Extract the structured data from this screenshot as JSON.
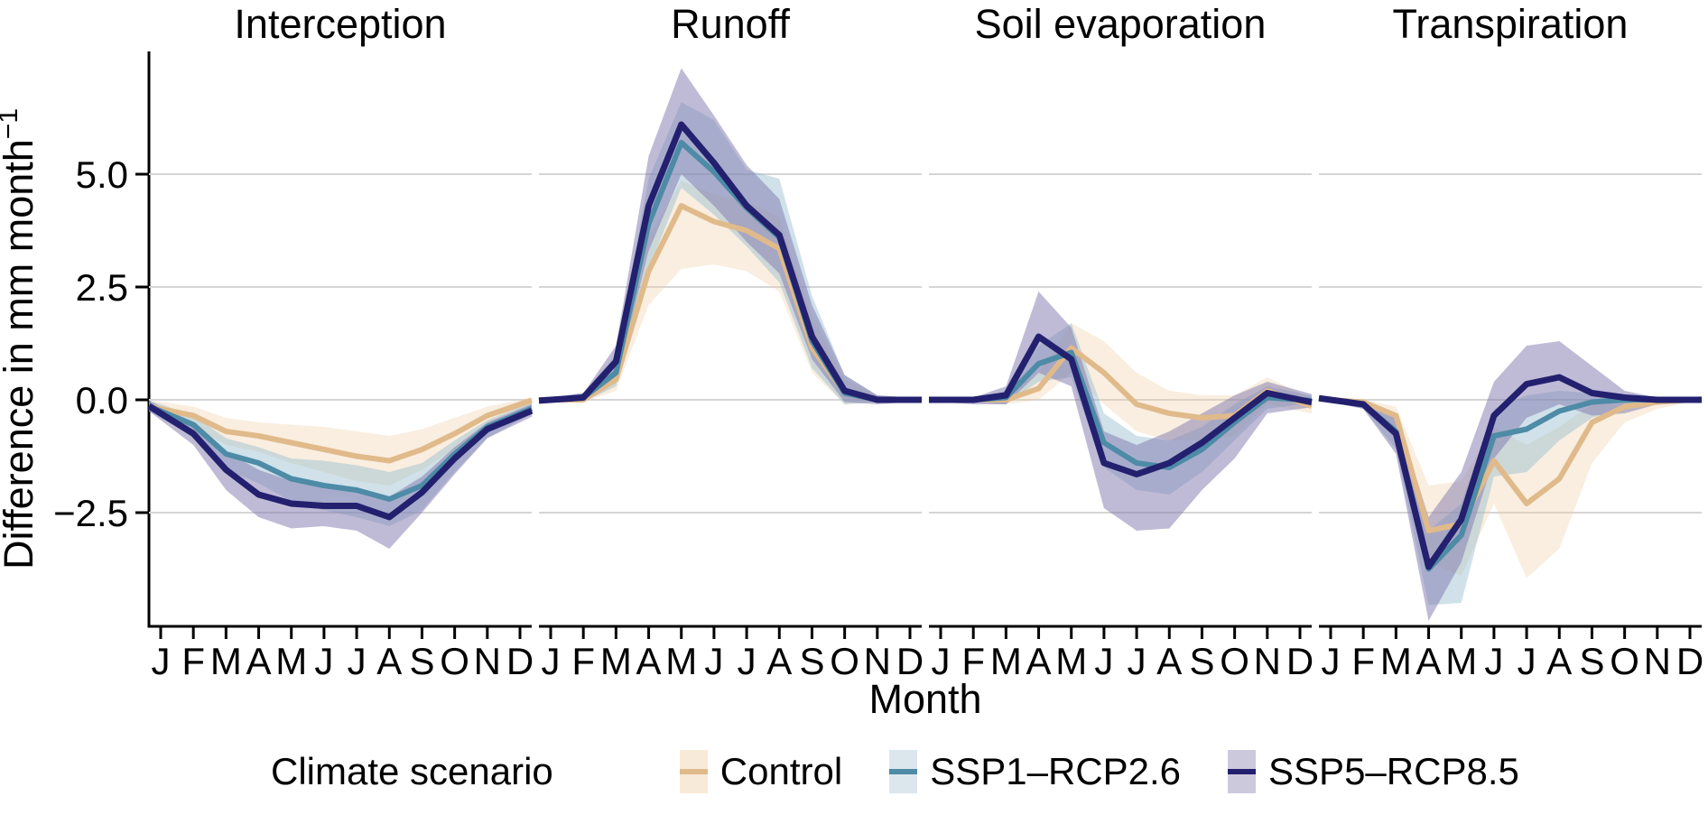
{
  "legend": {
    "title": "Climate scenario",
    "entries": [
      {
        "label": "Control",
        "line_color": "#e0ba8a",
        "key_fill": "#f8ead8"
      },
      {
        "label": "SSP1–RCP2.6",
        "line_color": "#4d8ba6",
        "key_fill": "#dce7ed"
      },
      {
        "label": "SSP5–RCP8.5",
        "line_color": "#23206f",
        "key_fill": "#cdc9dd"
      }
    ]
  },
  "chart_data": {
    "type": "line",
    "facet_variable_titles": [
      "Interception",
      "Runoff",
      "Soil evaporation",
      "Transpiration"
    ],
    "xlabel": "Month",
    "ylabel": "Difference in mm month",
    "ylabel_superscript": "−1",
    "categories": [
      "J",
      "F",
      "M",
      "A",
      "M",
      "J",
      "J",
      "A",
      "S",
      "O",
      "N",
      "D"
    ],
    "yticks": [
      {
        "label": "5.0",
        "value": 5.0
      },
      {
        "label": "2.5",
        "value": 2.5
      },
      {
        "label": "0.0",
        "value": 0.0
      },
      {
        "label": "−2.5",
        "value": -2.5
      }
    ],
    "ylim": [
      -5.0,
      7.7
    ],
    "grid": "horizontal-only",
    "legend_position": "bottom",
    "gridline_color": "#d5d5d5",
    "axis_color": "#000000",
    "series_styles": [
      {
        "name": "Control",
        "line_color": "#e0ba8a",
        "band_color": "#eecfa5",
        "band_opacity": 0.35,
        "line_width": 6
      },
      {
        "name": "SSP1–RCP2.6",
        "line_color": "#4d8ba6",
        "band_color": "#8fb8cc",
        "band_opacity": 0.42,
        "line_width": 6
      },
      {
        "name": "SSP5–RCP8.5",
        "line_color": "#23206f",
        "band_color": "#7f78ae",
        "band_opacity": 0.5,
        "line_width": 7
      }
    ],
    "facets": [
      {
        "title": "Interception",
        "series": [
          {
            "name": "Control",
            "values": [
              -0.2,
              -0.35,
              -0.7,
              -0.8,
              -0.95,
              -1.1,
              -1.25,
              -1.35,
              -1.1,
              -0.75,
              -0.35,
              -0.1
            ],
            "upper": [
              -0.05,
              -0.15,
              -0.4,
              -0.5,
              -0.55,
              -0.6,
              -0.7,
              -0.8,
              -0.65,
              -0.4,
              -0.15,
              0.0
            ],
            "lower": [
              -0.35,
              -0.6,
              -1.0,
              -1.15,
              -1.4,
              -1.6,
              -1.8,
              -1.9,
              -1.55,
              -1.1,
              -0.55,
              -0.25
            ]
          },
          {
            "name": "SSP1–RCP2.6",
            "values": [
              -0.25,
              -0.55,
              -1.2,
              -1.4,
              -1.75,
              -1.9,
              -2.0,
              -2.2,
              -1.9,
              -1.2,
              -0.6,
              -0.3
            ],
            "upper": [
              -0.1,
              -0.35,
              -0.85,
              -1.05,
              -1.3,
              -1.35,
              -1.45,
              -1.6,
              -1.4,
              -0.9,
              -0.45,
              -0.15
            ],
            "lower": [
              -0.4,
              -0.8,
              -1.55,
              -1.85,
              -2.25,
              -2.45,
              -2.6,
              -2.8,
              -2.45,
              -1.6,
              -0.85,
              -0.45
            ]
          },
          {
            "name": "SSP5–RCP8.5",
            "values": [
              -0.3,
              -0.75,
              -1.55,
              -2.1,
              -2.3,
              -2.35,
              -2.35,
              -2.6,
              -2.05,
              -1.3,
              -0.65,
              -0.35
            ],
            "upper": [
              -0.15,
              -0.5,
              -1.15,
              -1.55,
              -1.8,
              -1.9,
              -1.95,
              -2.15,
              -1.7,
              -1.05,
              -0.5,
              -0.2
            ],
            "lower": [
              -0.45,
              -1.0,
              -2.0,
              -2.6,
              -2.85,
              -2.8,
              -2.9,
              -3.3,
              -2.5,
              -1.65,
              -0.85,
              -0.5
            ]
          }
        ]
      },
      {
        "title": "Runoff",
        "series": [
          {
            "name": "Control",
            "values": [
              0,
              0,
              0.45,
              2.85,
              4.3,
              3.95,
              3.75,
              3.35,
              1.15,
              0.15,
              0,
              0
            ],
            "upper": [
              0.05,
              0.1,
              0.8,
              3.6,
              4.85,
              4.55,
              4.4,
              4.05,
              1.85,
              0.45,
              0.1,
              0.05
            ],
            "lower": [
              -0.05,
              -0.05,
              0.2,
              2.1,
              2.9,
              3.0,
              2.85,
              2.4,
              0.6,
              -0.1,
              -0.05,
              -0.05
            ]
          },
          {
            "name": "SSP1–RCP2.6",
            "values": [
              0,
              0.05,
              0.6,
              3.9,
              5.7,
              5.05,
              4.25,
              3.6,
              1.3,
              0.15,
              0,
              0
            ],
            "upper": [
              0.05,
              0.15,
              1.0,
              4.9,
              6.6,
              6.2,
              5.1,
              4.9,
              2.3,
              0.55,
              0.1,
              0.05
            ],
            "lower": [
              -0.05,
              -0.05,
              0.3,
              2.9,
              4.7,
              4.1,
              3.4,
              2.6,
              0.7,
              -0.1,
              -0.05,
              -0.05
            ]
          },
          {
            "name": "SSP5–RCP8.5",
            "values": [
              0,
              0.05,
              0.85,
              4.3,
              6.1,
              5.25,
              4.3,
              3.65,
              1.4,
              0.2,
              0,
              0
            ],
            "upper": [
              0.05,
              0.15,
              1.2,
              5.4,
              7.35,
              6.3,
              5.2,
              4.45,
              2.1,
              0.55,
              0.1,
              0.05
            ],
            "lower": [
              -0.05,
              -0.05,
              0.4,
              3.3,
              5.0,
              4.3,
              3.5,
              2.8,
              0.9,
              -0.05,
              -0.1,
              -0.05
            ]
          }
        ]
      },
      {
        "title": "Soil evaporation",
        "series": [
          {
            "name": "Control",
            "values": [
              0,
              0,
              0,
              0.25,
              1.15,
              0.6,
              -0.1,
              -0.3,
              -0.4,
              -0.35,
              0.2,
              -0.05
            ],
            "upper": [
              0.05,
              0.05,
              0.1,
              0.6,
              1.7,
              1.3,
              0.6,
              0.2,
              0.1,
              0.1,
              0.5,
              0.15
            ],
            "lower": [
              -0.05,
              -0.05,
              -0.1,
              0.0,
              0.6,
              -0.1,
              -0.7,
              -0.9,
              -0.9,
              -0.8,
              -0.1,
              -0.25
            ]
          },
          {
            "name": "SSP1–RCP2.6",
            "values": [
              0,
              0,
              0.05,
              0.8,
              1.05,
              -0.95,
              -1.4,
              -1.5,
              -1.1,
              -0.5,
              0.05,
              0
            ],
            "upper": [
              0.05,
              0.05,
              0.2,
              1.2,
              1.7,
              -0.3,
              -0.8,
              -0.9,
              -0.6,
              -0.1,
              0.3,
              0.15
            ],
            "lower": [
              -0.05,
              -0.05,
              -0.1,
              0.4,
              0.5,
              -1.5,
              -2.0,
              -2.1,
              -1.6,
              -0.9,
              -0.2,
              -0.1
            ]
          },
          {
            "name": "SSP5–RCP8.5",
            "values": [
              0,
              0,
              0.1,
              1.4,
              0.9,
              -1.4,
              -1.65,
              -1.4,
              -0.95,
              -0.4,
              0.15,
              0
            ],
            "upper": [
              0.05,
              0.05,
              0.3,
              2.4,
              1.6,
              -0.7,
              -1.0,
              -0.7,
              -0.3,
              0.1,
              0.4,
              0.2
            ],
            "lower": [
              -0.05,
              -0.1,
              -0.1,
              0.6,
              0.3,
              -2.4,
              -2.9,
              -2.85,
              -2.0,
              -1.3,
              -0.3,
              -0.2
            ]
          }
        ]
      },
      {
        "title": "Transpiration",
        "series": [
          {
            "name": "Control",
            "values": [
              0,
              -0.05,
              -0.35,
              -2.9,
              -2.75,
              -1.35,
              -2.3,
              -1.75,
              -0.5,
              -0.15,
              -0.05,
              0
            ],
            "upper": [
              0.05,
              0.0,
              -0.15,
              -1.9,
              -1.8,
              -0.6,
              -1.0,
              -0.6,
              -0.1,
              0.1,
              0.05,
              0.05
            ],
            "lower": [
              -0.05,
              -0.15,
              -0.7,
              -3.6,
              -3.9,
              -2.3,
              -3.95,
              -3.3,
              -1.4,
              -0.5,
              -0.2,
              -0.05
            ]
          },
          {
            "name": "SSP1–RCP2.6",
            "values": [
              0,
              -0.1,
              -0.7,
              -3.75,
              -3.0,
              -0.8,
              -0.65,
              -0.25,
              -0.05,
              0,
              0,
              0
            ],
            "upper": [
              0.05,
              0.0,
              -0.35,
              -2.9,
              -2.3,
              -0.2,
              0.1,
              0.2,
              0.15,
              0.05,
              0.05,
              0.05
            ],
            "lower": [
              -0.05,
              -0.2,
              -1.1,
              -4.55,
              -4.5,
              -1.7,
              -1.6,
              -0.9,
              -0.4,
              -0.2,
              -0.05,
              -0.05
            ]
          },
          {
            "name": "SSP5–RCP8.5",
            "values": [
              0,
              -0.1,
              -0.75,
              -3.7,
              -2.65,
              -0.35,
              0.35,
              0.5,
              0.15,
              0.05,
              0,
              0
            ],
            "upper": [
              0.05,
              0.0,
              -0.3,
              -2.6,
              -1.6,
              0.4,
              1.2,
              1.3,
              0.75,
              0.2,
              0.05,
              0.05
            ],
            "lower": [
              -0.05,
              -0.2,
              -1.2,
              -4.9,
              -3.6,
              -1.3,
              -0.4,
              -0.1,
              -0.35,
              -0.3,
              -0.1,
              -0.05
            ]
          }
        ]
      }
    ]
  }
}
